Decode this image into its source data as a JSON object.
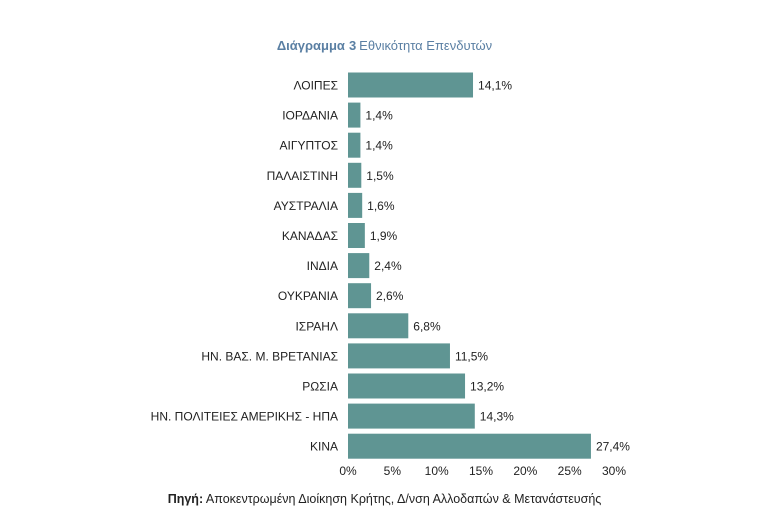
{
  "title": {
    "prefix": "Διάγραμμα",
    "number": "3",
    "text": "Εθνικότητα Επενδυτών"
  },
  "source": {
    "label": "Πηγή:",
    "text": "Αποκεντρωμένη Διοίκηση Κρήτης, Δ/νση Αλλοδαπών & Μετανάστευσής"
  },
  "colors": {
    "bar": "#5f9593",
    "axis_text": "#222222",
    "title": "#5a7fa3"
  },
  "chart_data": {
    "type": "bar",
    "orientation": "horizontal",
    "categories": [
      "ΛΟΙΠΕΣ",
      "ΙΟΡΔΑΝΙΑ",
      "ΑΙΓΥΠΤΟΣ",
      "ΠΑΛΑΙΣΤΙΝΗ",
      "ΑΥΣΤΡΑΛΙΑ",
      "ΚΑΝΑΔΑΣ",
      "ΙΝΔΙΑ",
      "ΟΥΚΡΑΝΙΑ",
      "ΙΣΡΑΗΛ",
      "ΗΝ. ΒΑΣ. Μ. ΒΡΕΤΑΝΙΑΣ",
      "ΡΩΣΙΑ",
      "ΗΝ. ΠΟΛΙΤΕΙΕΣ ΑΜΕΡΙΚΗΣ - ΗΠΑ",
      "ΚΙΝΑ"
    ],
    "values": [
      14.1,
      1.4,
      1.4,
      1.5,
      1.6,
      1.9,
      2.4,
      2.6,
      6.8,
      11.5,
      13.2,
      14.3,
      27.4
    ],
    "value_labels": [
      "14,1%",
      "1,4%",
      "1,4%",
      "1,5%",
      "1,6%",
      "1,9%",
      "2,4%",
      "2,6%",
      "6,8%",
      "11,5%",
      "13,2%",
      "14,3%",
      "27,4%"
    ],
    "xlim": [
      0,
      30
    ],
    "xticks": [
      0,
      5,
      10,
      15,
      20,
      25,
      30
    ],
    "xtick_labels": [
      "0%",
      "5%",
      "10%",
      "15%",
      "20%",
      "25%",
      "30%"
    ],
    "grid": false,
    "title": "Διάγραμμα 3 Εθνικότητα Επενδυτών",
    "xlabel": "",
    "ylabel": ""
  }
}
